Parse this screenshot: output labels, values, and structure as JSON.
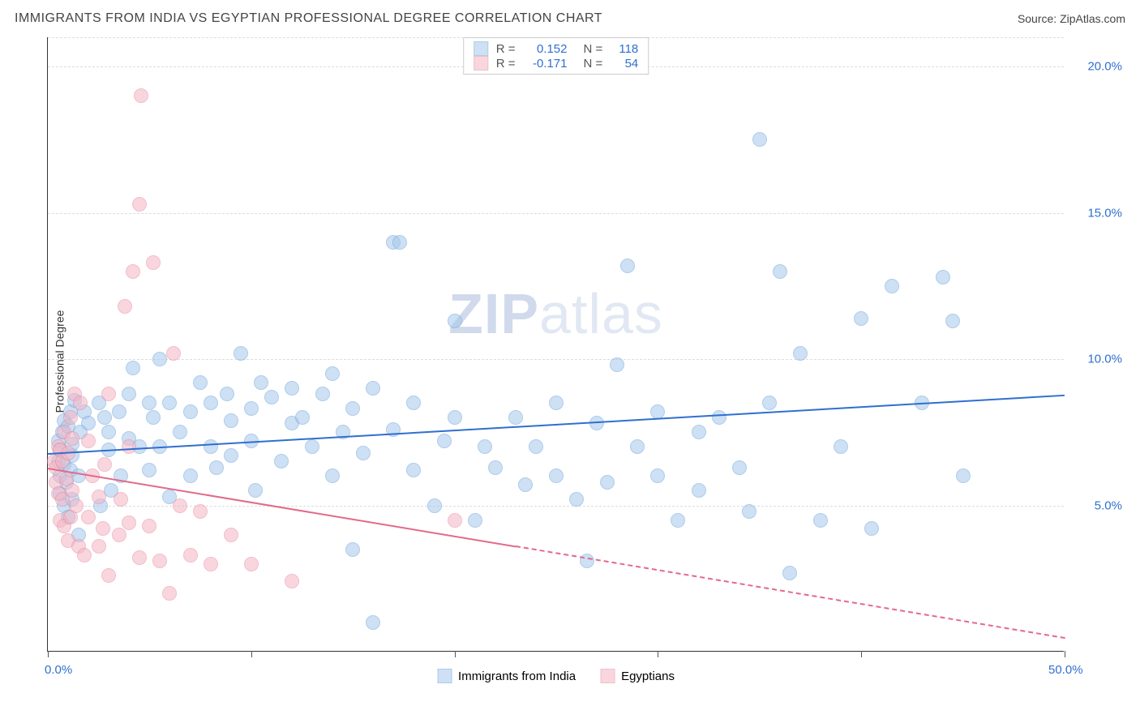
{
  "header": {
    "title": "IMMIGRANTS FROM INDIA VS EGYPTIAN PROFESSIONAL DEGREE CORRELATION CHART",
    "source_label": "Source: ",
    "source_name": "ZipAtlas.com"
  },
  "watermark": {
    "part1": "ZIP",
    "part2": "atlas"
  },
  "chart": {
    "type": "scatter",
    "y_label": "Professional Degree",
    "background_color": "#ffffff",
    "grid_color": "#dddddd",
    "grid_dash": "4,4",
    "xlim": [
      0,
      50
    ],
    "ylim": [
      0,
      21
    ],
    "x_ticks": [
      0,
      10,
      20,
      30,
      40,
      50
    ],
    "x_tick_labels": [
      "0.0%",
      "",
      "",
      "",
      "",
      "50.0%"
    ],
    "x_label_color_left": "#2f6fd0",
    "x_label_color_right": "#2f6fd0",
    "y_gridlines": [
      5,
      10,
      15,
      20,
      21
    ],
    "y_tick_labels": [
      {
        "v": 5,
        "text": "5.0%"
      },
      {
        "v": 10,
        "text": "10.0%"
      },
      {
        "v": 15,
        "text": "15.0%"
      },
      {
        "v": 20,
        "text": "20.0%"
      }
    ],
    "y_label_color": "#2f6fd0",
    "series": [
      {
        "name": "Immigrants from India",
        "fill_color": "#a6c8ec",
        "fill_opacity": 0.55,
        "stroke_color": "#6fa3d8",
        "stroke_width": 1,
        "marker_radius": 9,
        "trend_color": "#2f6fd0",
        "trend_width": 2,
        "trend": {
          "x1": 0,
          "y1": 6.8,
          "x2": 50,
          "y2": 8.8,
          "dash_after_x": null
        },
        "R": "0.152",
        "N": "118",
        "points": [
          [
            0.5,
            6.5
          ],
          [
            0.5,
            7.2
          ],
          [
            0.6,
            5.4
          ],
          [
            0.6,
            6.0
          ],
          [
            0.6,
            6.9
          ],
          [
            0.7,
            7.5
          ],
          [
            0.8,
            5.0
          ],
          [
            0.8,
            6.4
          ],
          [
            0.8,
            7.9
          ],
          [
            0.9,
            5.8
          ],
          [
            1.0,
            7.7
          ],
          [
            1.0,
            4.6
          ],
          [
            1.1,
            6.2
          ],
          [
            1.1,
            8.2
          ],
          [
            1.2,
            5.2
          ],
          [
            1.2,
            6.7
          ],
          [
            1.2,
            7.1
          ],
          [
            1.3,
            8.6
          ],
          [
            1.5,
            4.0
          ],
          [
            1.5,
            6.0
          ],
          [
            1.6,
            7.5
          ],
          [
            1.8,
            8.2
          ],
          [
            2.0,
            7.8
          ],
          [
            2.5,
            8.5
          ],
          [
            2.6,
            5.0
          ],
          [
            2.8,
            8.0
          ],
          [
            3.0,
            6.9
          ],
          [
            3.0,
            7.5
          ],
          [
            3.1,
            5.5
          ],
          [
            3.5,
            8.2
          ],
          [
            3.6,
            6.0
          ],
          [
            4.0,
            8.8
          ],
          [
            4.0,
            7.3
          ],
          [
            4.2,
            9.7
          ],
          [
            4.5,
            7.0
          ],
          [
            5.0,
            8.5
          ],
          [
            5.0,
            6.2
          ],
          [
            5.2,
            8.0
          ],
          [
            5.5,
            7.0
          ],
          [
            5.5,
            10.0
          ],
          [
            6.0,
            8.5
          ],
          [
            6.0,
            5.3
          ],
          [
            6.5,
            7.5
          ],
          [
            7.0,
            6.0
          ],
          [
            7.0,
            8.2
          ],
          [
            7.5,
            9.2
          ],
          [
            8.0,
            8.5
          ],
          [
            8.0,
            7.0
          ],
          [
            8.3,
            6.3
          ],
          [
            8.8,
            8.8
          ],
          [
            9.0,
            6.7
          ],
          [
            9.0,
            7.9
          ],
          [
            9.5,
            10.2
          ],
          [
            10.0,
            7.2
          ],
          [
            10.0,
            8.3
          ],
          [
            10.2,
            5.5
          ],
          [
            10.5,
            9.2
          ],
          [
            11.0,
            8.7
          ],
          [
            11.5,
            6.5
          ],
          [
            12.0,
            7.8
          ],
          [
            12.0,
            9.0
          ],
          [
            12.5,
            8.0
          ],
          [
            13.0,
            7.0
          ],
          [
            13.5,
            8.8
          ],
          [
            14.0,
            6.0
          ],
          [
            14.0,
            9.5
          ],
          [
            14.5,
            7.5
          ],
          [
            15.0,
            8.3
          ],
          [
            15.0,
            3.5
          ],
          [
            15.5,
            6.8
          ],
          [
            16.0,
            1.0
          ],
          [
            16.0,
            9.0
          ],
          [
            17.0,
            7.6
          ],
          [
            17.0,
            14.0
          ],
          [
            17.3,
            14.0
          ],
          [
            18.0,
            8.5
          ],
          [
            18.0,
            6.2
          ],
          [
            19.0,
            5.0
          ],
          [
            19.5,
            7.2
          ],
          [
            20.0,
            8.0
          ],
          [
            20.0,
            11.3
          ],
          [
            21.0,
            4.5
          ],
          [
            21.5,
            7.0
          ],
          [
            22.0,
            6.3
          ],
          [
            23.0,
            8.0
          ],
          [
            23.5,
            5.7
          ],
          [
            24.0,
            7.0
          ],
          [
            25.0,
            6.0
          ],
          [
            25.0,
            8.5
          ],
          [
            26.0,
            5.2
          ],
          [
            26.5,
            3.1
          ],
          [
            27.0,
            7.8
          ],
          [
            27.5,
            5.8
          ],
          [
            28.0,
            9.8
          ],
          [
            28.5,
            13.2
          ],
          [
            29.0,
            7.0
          ],
          [
            30.0,
            6.0
          ],
          [
            30.0,
            8.2
          ],
          [
            31.0,
            4.5
          ],
          [
            32.0,
            7.5
          ],
          [
            32.0,
            5.5
          ],
          [
            33.0,
            8.0
          ],
          [
            34.0,
            6.3
          ],
          [
            34.5,
            4.8
          ],
          [
            35.0,
            17.5
          ],
          [
            35.5,
            8.5
          ],
          [
            36.0,
            13.0
          ],
          [
            36.5,
            2.7
          ],
          [
            37.0,
            10.2
          ],
          [
            38.0,
            4.5
          ],
          [
            39.0,
            7.0
          ],
          [
            40.0,
            11.4
          ],
          [
            40.5,
            4.2
          ],
          [
            41.5,
            12.5
          ],
          [
            43.0,
            8.5
          ],
          [
            44.0,
            12.8
          ],
          [
            44.5,
            11.3
          ],
          [
            45.0,
            6.0
          ]
        ]
      },
      {
        "name": "Egyptians",
        "fill_color": "#f5b6c4",
        "fill_opacity": 0.55,
        "stroke_color": "#e58aa2",
        "stroke_width": 1,
        "marker_radius": 9,
        "trend_color": "#e26a8a",
        "trend_width": 2,
        "trend": {
          "x1": 0,
          "y1": 6.3,
          "x2": 50,
          "y2": 0.5,
          "dash_after_x": 23
        },
        "R": "-0.171",
        "N": "54",
        "points": [
          [
            0.3,
            6.5
          ],
          [
            0.4,
            5.8
          ],
          [
            0.4,
            6.3
          ],
          [
            0.5,
            7.0
          ],
          [
            0.5,
            5.4
          ],
          [
            0.6,
            6.9
          ],
          [
            0.6,
            4.5
          ],
          [
            0.7,
            5.2
          ],
          [
            0.7,
            6.5
          ],
          [
            0.8,
            7.5
          ],
          [
            0.8,
            4.3
          ],
          [
            0.9,
            5.9
          ],
          [
            1.0,
            6.8
          ],
          [
            1.0,
            3.8
          ],
          [
            1.1,
            8.0
          ],
          [
            1.1,
            4.6
          ],
          [
            1.2,
            5.5
          ],
          [
            1.2,
            7.3
          ],
          [
            1.3,
            8.8
          ],
          [
            1.4,
            5.0
          ],
          [
            1.5,
            3.6
          ],
          [
            1.6,
            8.5
          ],
          [
            1.8,
            3.3
          ],
          [
            2.0,
            4.6
          ],
          [
            2.0,
            7.2
          ],
          [
            2.2,
            6.0
          ],
          [
            2.5,
            3.6
          ],
          [
            2.5,
            5.3
          ],
          [
            2.7,
            4.2
          ],
          [
            2.8,
            6.4
          ],
          [
            3.0,
            8.8
          ],
          [
            3.0,
            2.6
          ],
          [
            3.5,
            4.0
          ],
          [
            3.6,
            5.2
          ],
          [
            3.8,
            11.8
          ],
          [
            4.0,
            4.4
          ],
          [
            4.0,
            7.0
          ],
          [
            4.2,
            13.0
          ],
          [
            4.5,
            3.2
          ],
          [
            4.5,
            15.3
          ],
          [
            4.6,
            19.0
          ],
          [
            5.0,
            4.3
          ],
          [
            5.2,
            13.3
          ],
          [
            5.5,
            3.1
          ],
          [
            6.0,
            2.0
          ],
          [
            6.2,
            10.2
          ],
          [
            6.5,
            5.0
          ],
          [
            7.0,
            3.3
          ],
          [
            7.5,
            4.8
          ],
          [
            8.0,
            3.0
          ],
          [
            9.0,
            4.0
          ],
          [
            10.0,
            3.0
          ],
          [
            12.0,
            2.4
          ],
          [
            20.0,
            4.5
          ]
        ]
      }
    ],
    "legend_top": {
      "r_label": "R =",
      "n_label": "N =",
      "value_color": "#2f6fd0",
      "label_color": "#555"
    },
    "legend_bottom_labels": [
      "Immigrants from India",
      "Egyptians"
    ]
  }
}
